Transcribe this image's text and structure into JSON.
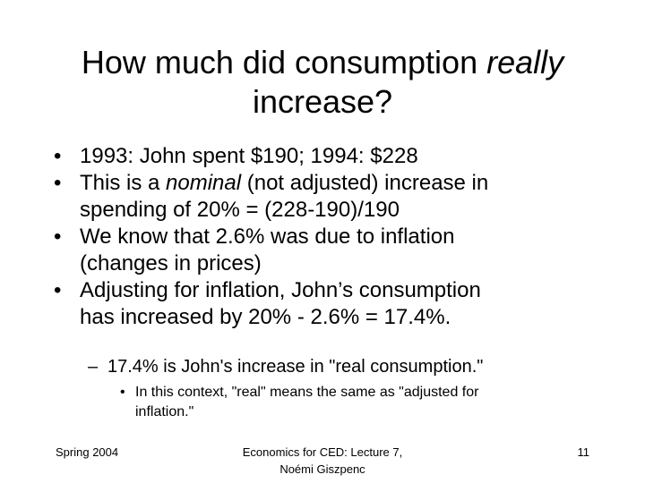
{
  "title": {
    "part1": "How much did consumption ",
    "emph": "really",
    "line2": "increase?"
  },
  "bullets": [
    {
      "lines": [
        "1993: John spent $190; 1994: $228"
      ]
    },
    {
      "pre": "This is a ",
      "emph": "nominal",
      "post": " (not adjusted) increase in",
      "line2": "spending of 20% = (228-190)/190"
    },
    {
      "lines": [
        "We know that 2.6% was due to inflation",
        "(changes in prices)"
      ]
    },
    {
      "lines": [
        "Adjusting for inflation, John’s consumption",
        "has increased by 20% - 2.6% = 17.4%."
      ]
    }
  ],
  "sub_bullet": {
    "marker": "–",
    "text": "17.4% is John's increase in \"real consumption.\""
  },
  "sub_sub_bullet": {
    "marker": "•",
    "lines": [
      "In this context, \"real\" means the same as \"adjusted for",
      "inflation.\""
    ]
  },
  "footer": {
    "left": "Spring 2004",
    "center_line1": "Economics for CED: Lecture 7,",
    "center_line2": "Noémi Giszpenc",
    "page_number": "11"
  },
  "bullet_marker": "•"
}
